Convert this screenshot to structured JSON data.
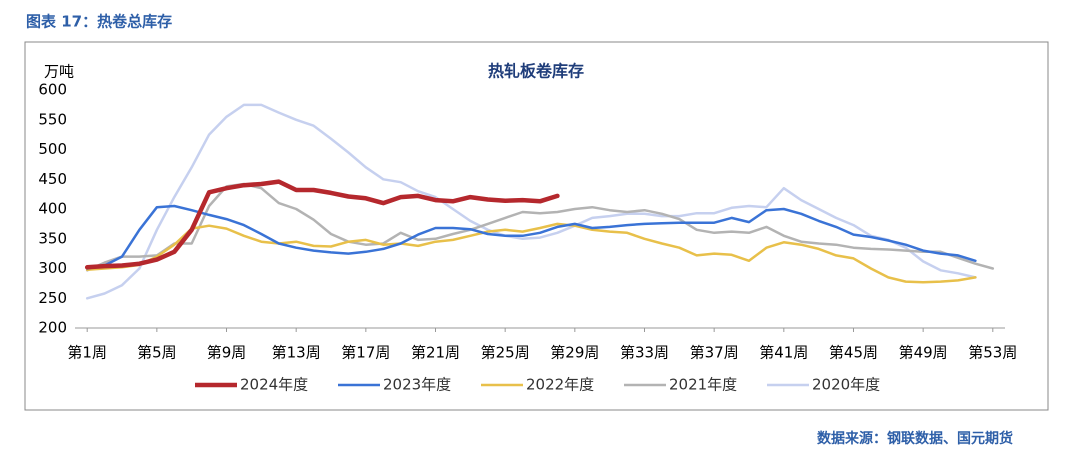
{
  "header": {
    "title": "图表 17：热卷总库存"
  },
  "source": "数据来源：钢联数据、国元期货",
  "chart_data": {
    "type": "line",
    "title": "热轧板卷库存",
    "y_label": "万吨",
    "x": [
      1,
      2,
      3,
      4,
      5,
      6,
      7,
      8,
      9,
      10,
      11,
      12,
      13,
      14,
      15,
      16,
      17,
      18,
      19,
      20,
      21,
      22,
      23,
      24,
      25,
      26,
      27,
      28,
      29,
      30,
      31,
      32,
      33,
      34,
      35,
      36,
      37,
      38,
      39,
      40,
      41,
      42,
      43,
      44,
      45,
      46,
      47,
      48,
      49,
      50,
      51,
      52,
      53
    ],
    "xlim": [
      0.3,
      53.7
    ],
    "xticks": [
      {
        "value": 1,
        "label": "第1周"
      },
      {
        "value": 5,
        "label": "第5周"
      },
      {
        "value": 9,
        "label": "第9周"
      },
      {
        "value": 13,
        "label": "第13周"
      },
      {
        "value": 17,
        "label": "第17周"
      },
      {
        "value": 21,
        "label": "第21周"
      },
      {
        "value": 25,
        "label": "第25周"
      },
      {
        "value": 29,
        "label": "第29周"
      },
      {
        "value": 33,
        "label": "第33周"
      },
      {
        "value": 37,
        "label": "第37周"
      },
      {
        "value": 41,
        "label": "第41周"
      },
      {
        "value": 45,
        "label": "第45周"
      },
      {
        "value": 49,
        "label": "第49周"
      },
      {
        "value": 53,
        "label": "第53周"
      }
    ],
    "ylim": [
      200,
      600
    ],
    "yticks": [
      200,
      250,
      300,
      350,
      400,
      450,
      500,
      550,
      600
    ],
    "series": [
      {
        "name": "2024年度",
        "color": "#b5282d",
        "width": 4.5,
        "values": [
          302,
          304,
          305,
          308,
          315,
          328,
          365,
          428,
          435,
          440,
          442,
          446,
          432,
          432,
          427,
          421,
          418,
          410,
          420,
          422,
          415,
          413,
          420,
          416,
          414,
          415,
          413,
          422,
          null,
          null,
          null,
          null,
          null,
          null,
          null,
          null,
          null,
          null,
          null,
          null,
          null,
          null,
          null,
          null,
          null,
          null,
          null,
          null,
          null,
          null,
          null,
          null,
          null
        ]
      },
      {
        "name": "2023年度",
        "color": "#3a73d6",
        "width": 2.5,
        "values": [
          300,
          305,
          320,
          365,
          403,
          405,
          398,
          390,
          383,
          373,
          358,
          342,
          335,
          330,
          327,
          325,
          328,
          333,
          342,
          357,
          368,
          368,
          366,
          358,
          355,
          355,
          360,
          370,
          375,
          368,
          370,
          373,
          375,
          376,
          377,
          377,
          377,
          385,
          378,
          398,
          400,
          392,
          380,
          370,
          357,
          353,
          347,
          340,
          330,
          325,
          322,
          313,
          null
        ]
      },
      {
        "name": "2022年度",
        "color": "#e8c04a",
        "width": 2.5,
        "values": [
          298,
          300,
          302,
          306,
          320,
          340,
          367,
          372,
          367,
          355,
          345,
          342,
          345,
          338,
          337,
          345,
          348,
          340,
          342,
          338,
          345,
          348,
          355,
          362,
          365,
          362,
          368,
          375,
          372,
          365,
          362,
          360,
          350,
          342,
          335,
          322,
          325,
          323,
          313,
          335,
          344,
          340,
          333,
          322,
          317,
          300,
          285,
          278,
          277,
          278,
          280,
          285,
          null
        ]
      },
      {
        "name": "2021年度",
        "color": "#b3b3b3",
        "width": 2.5,
        "values": [
          297,
          310,
          320,
          320,
          322,
          342,
          342,
          405,
          438,
          442,
          435,
          410,
          400,
          382,
          358,
          345,
          340,
          342,
          360,
          348,
          350,
          358,
          365,
          375,
          385,
          395,
          393,
          395,
          400,
          403,
          398,
          395,
          398,
          392,
          383,
          365,
          360,
          362,
          360,
          370,
          355,
          345,
          342,
          340,
          335,
          333,
          332,
          330,
          328,
          328,
          318,
          308,
          300
        ]
      },
      {
        "name": "2020年度",
        "color": "#c6d0ef",
        "width": 2.5,
        "values": [
          250,
          258,
          272,
          300,
          365,
          420,
          470,
          525,
          555,
          575,
          575,
          562,
          550,
          540,
          518,
          495,
          470,
          450,
          445,
          430,
          420,
          400,
          380,
          365,
          355,
          350,
          352,
          360,
          372,
          385,
          388,
          392,
          392,
          388,
          388,
          393,
          393,
          402,
          405,
          403,
          435,
          415,
          400,
          385,
          373,
          355,
          348,
          335,
          312,
          297,
          292,
          285,
          null
        ]
      }
    ]
  }
}
